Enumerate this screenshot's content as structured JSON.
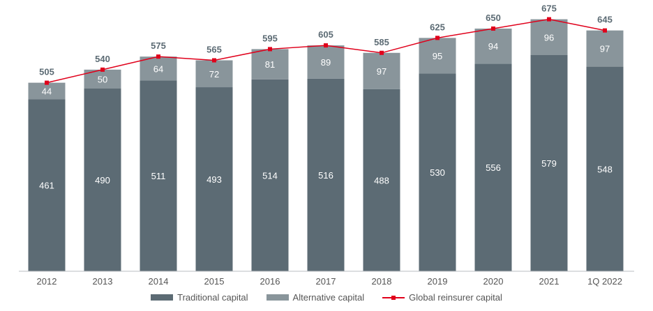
{
  "chart_data": {
    "type": "bar",
    "stacked": true,
    "categories": [
      "2012",
      "2013",
      "2014",
      "2015",
      "2016",
      "2017",
      "2018",
      "2019",
      "2020",
      "2021",
      "1Q 2022"
    ],
    "series": [
      {
        "name": "Traditional capital",
        "kind": "bar",
        "color": "#5c6b74",
        "values": [
          461,
          490,
          511,
          493,
          514,
          516,
          488,
          530,
          556,
          579,
          548
        ]
      },
      {
        "name": "Alternative capital",
        "kind": "bar",
        "color": "#89959b",
        "values": [
          44,
          50,
          64,
          72,
          81,
          89,
          97,
          95,
          94,
          96,
          97
        ]
      },
      {
        "name": "Global reinsurer capital",
        "kind": "line",
        "color": "#e0001b",
        "values": [
          505,
          540,
          575,
          565,
          595,
          605,
          585,
          625,
          650,
          675,
          645
        ]
      }
    ],
    "ylim": [
      0,
      700
    ],
    "grid": false,
    "legend_position": "bottom-center",
    "title": "",
    "xlabel": "",
    "ylabel": ""
  }
}
